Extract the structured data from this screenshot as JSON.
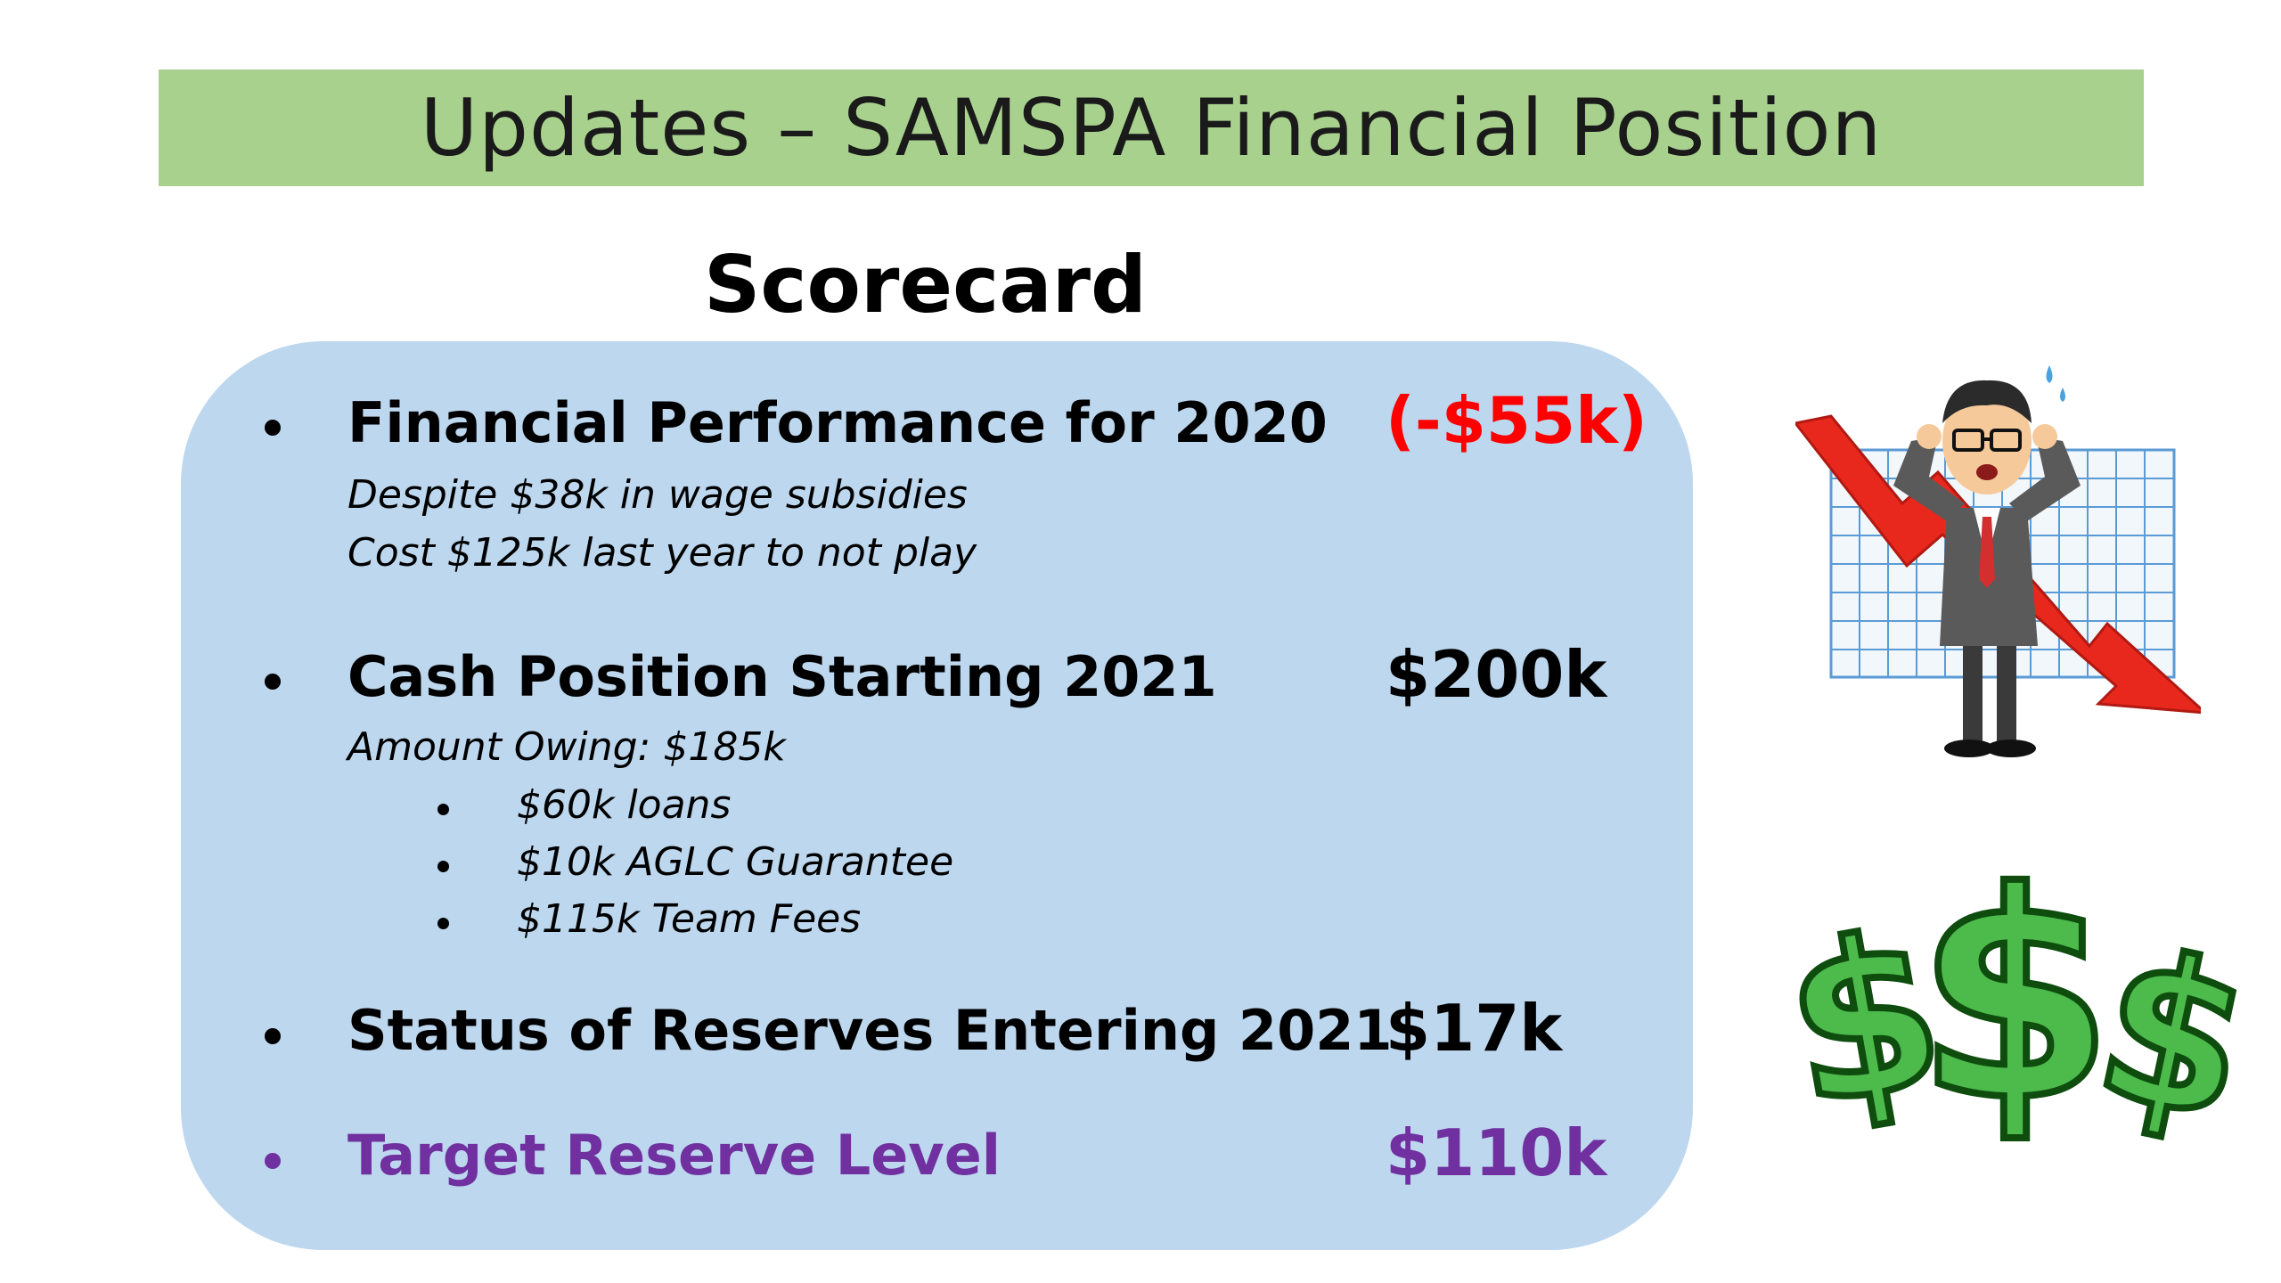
{
  "slide": {
    "title": "Updates – SAMSPA Financial Position",
    "subtitle": "Scorecard"
  },
  "scorecard": {
    "items": [
      {
        "label": "Financial Performance for 2020",
        "value": "(-$55k)",
        "notes": [
          "Despite $38k in wage subsidies",
          "Cost $125k last year to not play"
        ]
      },
      {
        "label": "Cash Position Starting 2021",
        "value": "$200k",
        "notes": [
          "Amount Owing: $185k"
        ],
        "sub_bullets": [
          "$60k loans",
          "$10k AGLC Guarantee",
          "$115k Team Fees"
        ]
      },
      {
        "label": "Status of Reserves Entering 2021",
        "value": "$17k"
      },
      {
        "label": "Target Reserve Level",
        "value": "$110k"
      }
    ]
  },
  "colors": {
    "title_bar": "#a9d18e",
    "card": "#bdd7ee",
    "negative": "#ff0000",
    "target": "#7030a0"
  },
  "icons": [
    "stressed-businessman-falling-chart-icon",
    "dollar-signs-icon"
  ]
}
